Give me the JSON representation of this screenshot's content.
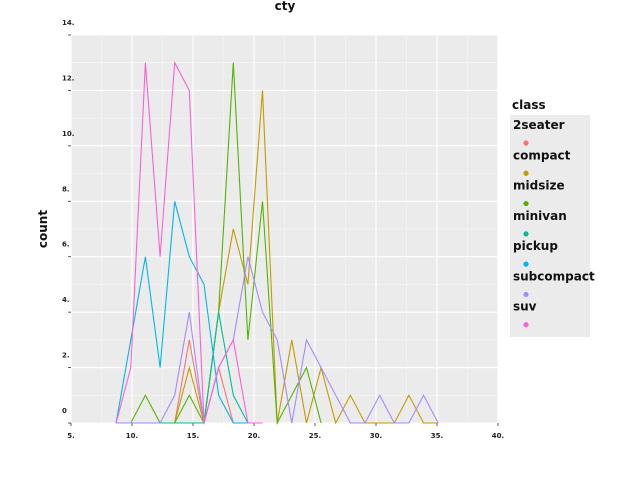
{
  "chart_data": {
    "type": "line",
    "title": "cty",
    "xlabel": "",
    "ylabel": "count",
    "xlim": [
      5,
      40
    ],
    "ylim": [
      0,
      14
    ],
    "x_ticks": [
      "5.",
      "10.",
      "15.",
      "20.",
      "25.",
      "30.",
      "35.",
      "40."
    ],
    "y_ticks": [
      "0",
      "2.",
      "4.",
      "6.",
      "8.",
      "10.",
      "12.",
      "14."
    ],
    "grid": true,
    "legend_position": "right",
    "legend_title": "class",
    "bin_width": 1.2,
    "series": [
      {
        "name": "2seater",
        "color": "#F8766D",
        "x": [
          8.7,
          9.9,
          11.1,
          12.3,
          13.5,
          14.7,
          15.9,
          17.1,
          18.3,
          19.5,
          20.7
        ],
        "y": [
          0,
          0,
          0,
          0,
          0,
          3,
          0,
          2,
          0,
          0,
          0
        ]
      },
      {
        "name": "compact",
        "color": "#C49A00",
        "x": [
          8.7,
          9.9,
          11.1,
          12.3,
          13.5,
          14.7,
          15.9,
          17.1,
          18.3,
          19.5,
          20.7,
          21.9,
          23.1,
          24.3,
          25.5,
          26.7,
          27.9,
          29.1,
          30.3,
          31.5,
          32.7,
          33.9,
          35.1
        ],
        "y": [
          0,
          0,
          0,
          0,
          0,
          2,
          0,
          4,
          7,
          5,
          12,
          0,
          3,
          0,
          2,
          0,
          1,
          0,
          0,
          0,
          1,
          0,
          0
        ]
      },
      {
        "name": "midsize",
        "color": "#53B400",
        "x": [
          8.7,
          9.9,
          11.1,
          12.3,
          13.5,
          14.7,
          15.9,
          17.1,
          18.3,
          19.5,
          20.7,
          21.9,
          23.1,
          24.3,
          25.5
        ],
        "y": [
          0,
          0,
          1,
          0,
          0,
          1,
          0,
          4,
          13,
          3,
          8,
          0,
          1,
          2,
          0
        ]
      },
      {
        "name": "minivan",
        "color": "#00C094",
        "x": [
          9.9,
          11.1,
          12.3,
          13.5,
          14.7,
          15.9,
          17.1,
          18.3,
          19.5,
          20.7
        ],
        "y": [
          0,
          0,
          0,
          0,
          0,
          0,
          4,
          1,
          0,
          0
        ]
      },
      {
        "name": "pickup",
        "color": "#00B6EB",
        "x": [
          8.7,
          9.9,
          11.1,
          12.3,
          13.5,
          14.7,
          15.9,
          17.1,
          18.3,
          19.5
        ],
        "y": [
          0,
          3,
          6,
          2,
          8,
          6,
          5,
          1,
          0,
          0
        ]
      },
      {
        "name": "subcompact",
        "color": "#A58AFF",
        "x": [
          8.7,
          9.9,
          11.1,
          12.3,
          13.5,
          14.7,
          15.9,
          17.1,
          18.3,
          19.5,
          20.7,
          21.9,
          23.1,
          24.3,
          25.5,
          26.7,
          27.9,
          29.1,
          30.3,
          31.5,
          32.7,
          33.9,
          35.1
        ],
        "y": [
          0,
          0,
          0,
          0,
          1,
          4,
          0,
          2,
          3,
          6,
          4,
          3,
          0,
          3,
          2,
          1,
          0,
          0,
          1,
          0,
          0,
          1,
          0
        ]
      },
      {
        "name": "suv",
        "color": "#FB61D7",
        "x": [
          8.7,
          9.9,
          11.1,
          12.3,
          13.5,
          14.7,
          15.9,
          17.1,
          18.3,
          19.5,
          20.7
        ],
        "y": [
          0,
          2,
          13,
          6,
          13,
          12,
          0,
          2,
          3,
          0,
          0
        ]
      }
    ]
  }
}
